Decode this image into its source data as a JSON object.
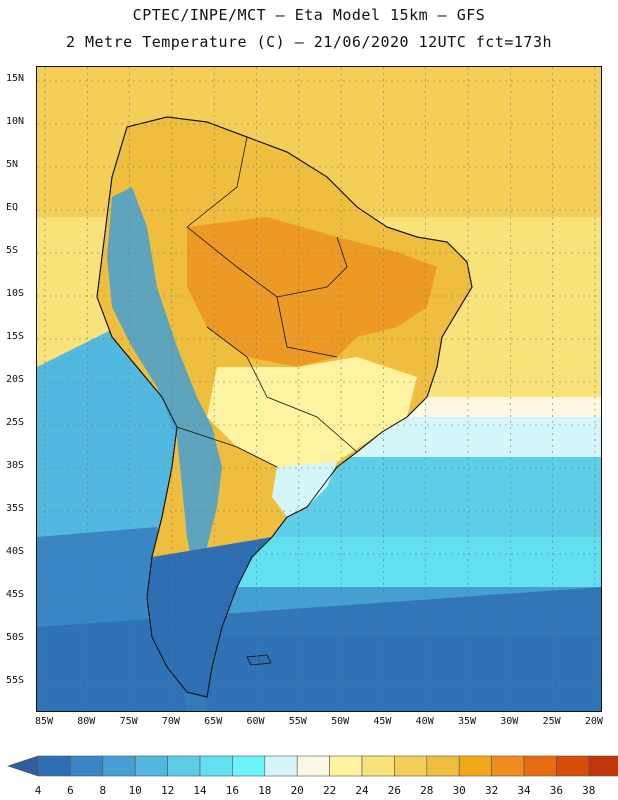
{
  "header": {
    "line1": "CPTEC/INPE/MCT –  Eta Model 15km – GFS",
    "line2": "2 Metre Temperature (C) – 21/06/2020 12UTC fct=173h"
  },
  "axes": {
    "lat_labels": [
      "15N",
      "10N",
      "5N",
      "EQ",
      "5S",
      "10S",
      "15S",
      "20S",
      "25S",
      "30S",
      "35S",
      "40S",
      "45S",
      "50S",
      "55S"
    ],
    "lon_labels": [
      "85W",
      "80W",
      "75W",
      "70W",
      "65W",
      "60W",
      "55W",
      "50W",
      "45W",
      "40W",
      "35W",
      "30W",
      "25W",
      "20W"
    ]
  },
  "colorbar": {
    "ticks": [
      "4",
      "6",
      "8",
      "10",
      "12",
      "14",
      "16",
      "18",
      "20",
      "22",
      "24",
      "26",
      "28",
      "30",
      "32",
      "34",
      "36",
      "38"
    ],
    "colors": [
      "#2e6fb3",
      "#3a86c4",
      "#44a0d2",
      "#52b8df",
      "#5dcde8",
      "#62e0f0",
      "#6cf4fb",
      "#d4f6fb",
      "#fdf8e4",
      "#fdf3a0",
      "#f8e27a",
      "#f3cf57",
      "#efbe3f",
      "#f0a818",
      "#ec8d1e",
      "#e86d12",
      "#d74d0a",
      "#c0380a"
    ],
    "low_color": "#2f5f9f",
    "high_color": "#b23a0e"
  },
  "map": {
    "ocean_band_colors": {
      "tropical": "#f3cf57",
      "subtropical": "#f8e27a",
      "mid": "#5dcde8",
      "south": "#3a86c4",
      "deep_south": "#2e6fb3"
    },
    "land_colors": {
      "amazon": "#efbe3f",
      "hot_core": "#ec8d1e",
      "brazil_south": "#fdf3a0",
      "andes_cold": "#44a0d2",
      "patagonia": "#2e6fb3"
    },
    "grid": "on"
  }
}
